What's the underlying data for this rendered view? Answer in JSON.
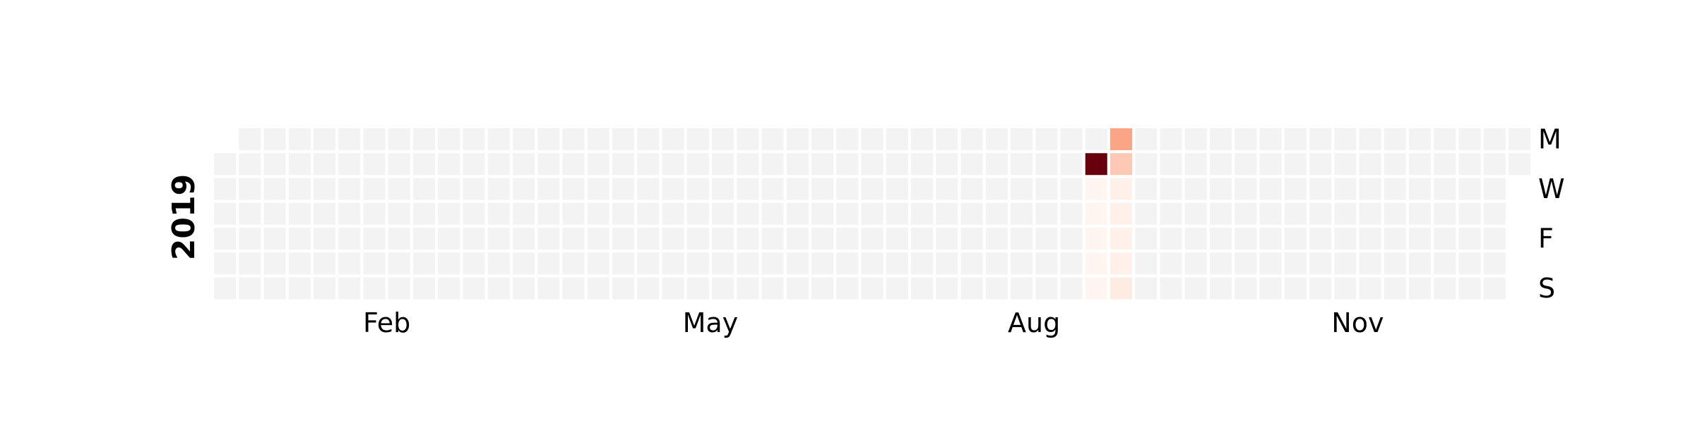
{
  "chart_data": {
    "type": "heatmap",
    "year": "2019",
    "day_labels": [
      "M",
      "",
      "W",
      "",
      "F",
      "",
      "S"
    ],
    "month_labels": [
      {
        "label": "Feb",
        "week": 6.5
      },
      {
        "label": "May",
        "week": 19.5
      },
      {
        "label": "Aug",
        "week": 32.5
      },
      {
        "label": "Nov",
        "week": 45.5
      }
    ],
    "first_day_weekday": 1,
    "num_days": 365,
    "empty_color": "#f3f3f3",
    "colormap": "Reds",
    "highlighted_cells": [
      {
        "week": 35,
        "weekday": 1,
        "color": "#67000d"
      },
      {
        "week": 35,
        "weekday": 2,
        "color": "#fff5f0"
      },
      {
        "week": 35,
        "weekday": 3,
        "color": "#fff5f0"
      },
      {
        "week": 35,
        "weekday": 4,
        "color": "#fff5f0"
      },
      {
        "week": 35,
        "weekday": 5,
        "color": "#fff5f0"
      },
      {
        "week": 35,
        "weekday": 6,
        "color": "#fff5f0"
      },
      {
        "week": 36,
        "weekday": 0,
        "color": "#fca486"
      },
      {
        "week": 36,
        "weekday": 1,
        "color": "#fdc9b4"
      },
      {
        "week": 36,
        "weekday": 2,
        "color": "#fff0ea"
      },
      {
        "week": 36,
        "weekday": 3,
        "color": "#fff0ea"
      },
      {
        "week": 36,
        "weekday": 4,
        "color": "#fff0ea"
      },
      {
        "week": 36,
        "weekday": 5,
        "color": "#fff0ea"
      },
      {
        "week": 36,
        "weekday": 6,
        "color": "#feebe2"
      }
    ]
  }
}
